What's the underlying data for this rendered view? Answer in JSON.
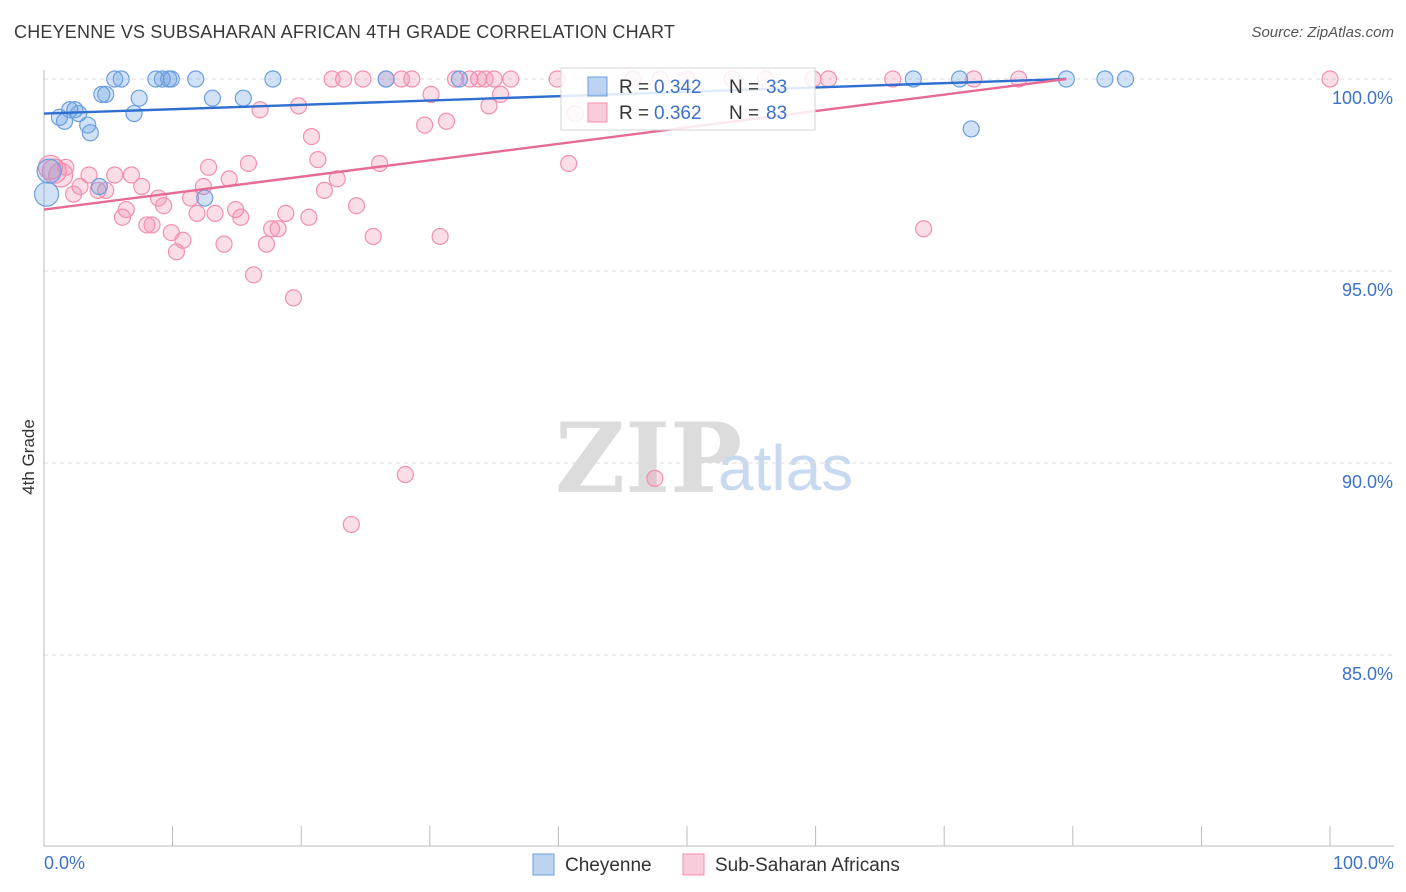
{
  "title": "CHEYENNE VS SUBSAHARAN AFRICAN 4TH GRADE CORRELATION CHART",
  "source": "Source: ZipAtlas.com",
  "watermark": {
    "part1": "ZIP",
    "part2": "atlas"
  },
  "colors": {
    "cheyenne": "#6a9fe0",
    "subsaharan": "#f28fb0",
    "cheyenne_line": "#2f6fd0",
    "subsaharan_line": "#e56a96",
    "label_blue": "#3b72c8"
  },
  "legend_box": {
    "cheyenne": {
      "r_label": "R =",
      "r_value": "0.342",
      "n_label": "N =",
      "n_value": "33"
    },
    "subsaharan": {
      "r_label": "R =",
      "r_value": "0.362",
      "n_label": "N =",
      "n_value": "83"
    }
  },
  "chart_data": {
    "type": "scatter",
    "title": "CHEYENNE VS SUBSAHARAN AFRICAN 4TH GRADE CORRELATION CHART",
    "xlabel": "",
    "ylabel": "4th Grade",
    "xlim": [
      0,
      100
    ],
    "ylim": [
      80.5,
      100.7
    ],
    "x_tick_labels": {
      "left": "0.0%",
      "right": "100.0%"
    },
    "y_ticks": [
      {
        "value": 100,
        "label": "100.0%"
      },
      {
        "value": 95,
        "label": "95.0%"
      },
      {
        "value": 90,
        "label": "90.0%"
      },
      {
        "value": 85,
        "label": "85.0%"
      }
    ],
    "legend": [
      "Cheyenne",
      "Sub-Saharan Africans"
    ],
    "series": [
      {
        "name": "Cheyenne",
        "r": 0.342,
        "n": 33,
        "trend": {
          "x": [
            0,
            79.5
          ],
          "y": [
            99.1,
            100.0
          ]
        },
        "points": [
          {
            "x": 0.2,
            "y": 97.0
          },
          {
            "x": 0.4,
            "y": 97.6
          },
          {
            "x": 1.2,
            "y": 99.0
          },
          {
            "x": 1.6,
            "y": 98.9
          },
          {
            "x": 2.0,
            "y": 99.2
          },
          {
            "x": 2.4,
            "y": 99.2
          },
          {
            "x": 2.7,
            "y": 99.1
          },
          {
            "x": 3.4,
            "y": 98.8
          },
          {
            "x": 3.6,
            "y": 98.6
          },
          {
            "x": 4.3,
            "y": 97.2
          },
          {
            "x": 4.5,
            "y": 99.6
          },
          {
            "x": 4.8,
            "y": 99.6
          },
          {
            "x": 5.5,
            "y": 100.0
          },
          {
            "x": 6.0,
            "y": 100.0
          },
          {
            "x": 7.0,
            "y": 99.1
          },
          {
            "x": 7.4,
            "y": 99.5
          },
          {
            "x": 8.7,
            "y": 100.0
          },
          {
            "x": 9.2,
            "y": 100.0
          },
          {
            "x": 9.7,
            "y": 100.0
          },
          {
            "x": 9.9,
            "y": 100.0
          },
          {
            "x": 11.8,
            "y": 100.0
          },
          {
            "x": 12.5,
            "y": 96.9
          },
          {
            "x": 13.1,
            "y": 99.5
          },
          {
            "x": 15.5,
            "y": 99.5
          },
          {
            "x": 17.8,
            "y": 100.0
          },
          {
            "x": 26.6,
            "y": 100.0
          },
          {
            "x": 32.3,
            "y": 100.0
          },
          {
            "x": 67.6,
            "y": 100.0
          },
          {
            "x": 71.2,
            "y": 100.0
          },
          {
            "x": 72.1,
            "y": 98.7
          },
          {
            "x": 79.5,
            "y": 100.0
          },
          {
            "x": 82.5,
            "y": 100.0
          },
          {
            "x": 84.1,
            "y": 100.0
          }
        ]
      },
      {
        "name": "Sub-Saharan Africans",
        "r": 0.362,
        "n": 83,
        "trend": {
          "x": [
            0,
            79.5
          ],
          "y": [
            96.6,
            100.0
          ]
        },
        "points": [
          {
            "x": 0.5,
            "y": 97.7
          },
          {
            "x": 0.8,
            "y": 97.6
          },
          {
            "x": 1.3,
            "y": 97.5
          },
          {
            "x": 1.7,
            "y": 97.7
          },
          {
            "x": 2.3,
            "y": 97.0
          },
          {
            "x": 2.8,
            "y": 97.2
          },
          {
            "x": 3.5,
            "y": 97.5
          },
          {
            "x": 4.2,
            "y": 97.1
          },
          {
            "x": 4.8,
            "y": 97.1
          },
          {
            "x": 5.5,
            "y": 97.5
          },
          {
            "x": 6.1,
            "y": 96.4
          },
          {
            "x": 6.4,
            "y": 96.6
          },
          {
            "x": 6.8,
            "y": 97.5
          },
          {
            "x": 7.6,
            "y": 97.2
          },
          {
            "x": 8.0,
            "y": 96.2
          },
          {
            "x": 8.4,
            "y": 96.2
          },
          {
            "x": 8.9,
            "y": 96.9
          },
          {
            "x": 9.3,
            "y": 96.7
          },
          {
            "x": 9.9,
            "y": 96.0
          },
          {
            "x": 10.3,
            "y": 95.5
          },
          {
            "x": 10.8,
            "y": 95.8
          },
          {
            "x": 11.4,
            "y": 96.9
          },
          {
            "x": 11.9,
            "y": 96.5
          },
          {
            "x": 12.4,
            "y": 97.2
          },
          {
            "x": 12.8,
            "y": 97.7
          },
          {
            "x": 13.3,
            "y": 96.5
          },
          {
            "x": 14.0,
            "y": 95.7
          },
          {
            "x": 14.4,
            "y": 97.4
          },
          {
            "x": 14.9,
            "y": 96.6
          },
          {
            "x": 15.3,
            "y": 96.4
          },
          {
            "x": 15.9,
            "y": 97.8
          },
          {
            "x": 16.3,
            "y": 94.9
          },
          {
            "x": 16.8,
            "y": 99.2
          },
          {
            "x": 17.3,
            "y": 95.7
          },
          {
            "x": 17.7,
            "y": 96.1
          },
          {
            "x": 18.2,
            "y": 96.1
          },
          {
            "x": 18.8,
            "y": 96.5
          },
          {
            "x": 19.4,
            "y": 94.3
          },
          {
            "x": 19.8,
            "y": 99.3
          },
          {
            "x": 20.6,
            "y": 96.4
          },
          {
            "x": 20.8,
            "y": 98.5
          },
          {
            "x": 21.3,
            "y": 97.9
          },
          {
            "x": 21.8,
            "y": 97.1
          },
          {
            "x": 22.4,
            "y": 100.0
          },
          {
            "x": 22.8,
            "y": 97.4
          },
          {
            "x": 23.3,
            "y": 100.0
          },
          {
            "x": 23.9,
            "y": 88.4
          },
          {
            "x": 24.3,
            "y": 96.7
          },
          {
            "x": 24.8,
            "y": 100.0
          },
          {
            "x": 25.6,
            "y": 95.9
          },
          {
            "x": 26.1,
            "y": 97.8
          },
          {
            "x": 26.6,
            "y": 100.0
          },
          {
            "x": 27.8,
            "y": 100.0
          },
          {
            "x": 28.1,
            "y": 89.7
          },
          {
            "x": 28.6,
            "y": 100.0
          },
          {
            "x": 29.6,
            "y": 98.8
          },
          {
            "x": 30.1,
            "y": 99.6
          },
          {
            "x": 30.8,
            "y": 95.9
          },
          {
            "x": 31.3,
            "y": 98.9
          },
          {
            "x": 32.0,
            "y": 100.0
          },
          {
            "x": 33.1,
            "y": 100.0
          },
          {
            "x": 33.8,
            "y": 100.0
          },
          {
            "x": 34.3,
            "y": 100.0
          },
          {
            "x": 34.6,
            "y": 99.3
          },
          {
            "x": 35.0,
            "y": 100.0
          },
          {
            "x": 35.5,
            "y": 99.6
          },
          {
            "x": 36.3,
            "y": 100.0
          },
          {
            "x": 39.9,
            "y": 100.0
          },
          {
            "x": 40.8,
            "y": 97.8
          },
          {
            "x": 41.3,
            "y": 99.1
          },
          {
            "x": 45.8,
            "y": 100.0
          },
          {
            "x": 47.9,
            "y": 100.0
          },
          {
            "x": 50.0,
            "y": 100.0
          },
          {
            "x": 53.5,
            "y": 100.0
          },
          {
            "x": 56.1,
            "y": 100.0
          },
          {
            "x": 59.8,
            "y": 100.0
          },
          {
            "x": 61.0,
            "y": 100.0
          },
          {
            "x": 66.0,
            "y": 100.0
          },
          {
            "x": 68.4,
            "y": 96.1
          },
          {
            "x": 72.3,
            "y": 100.0
          },
          {
            "x": 75.8,
            "y": 100.0
          },
          {
            "x": 100.0,
            "y": 100.0
          },
          {
            "x": 47.5,
            "y": 89.6
          }
        ]
      }
    ]
  }
}
